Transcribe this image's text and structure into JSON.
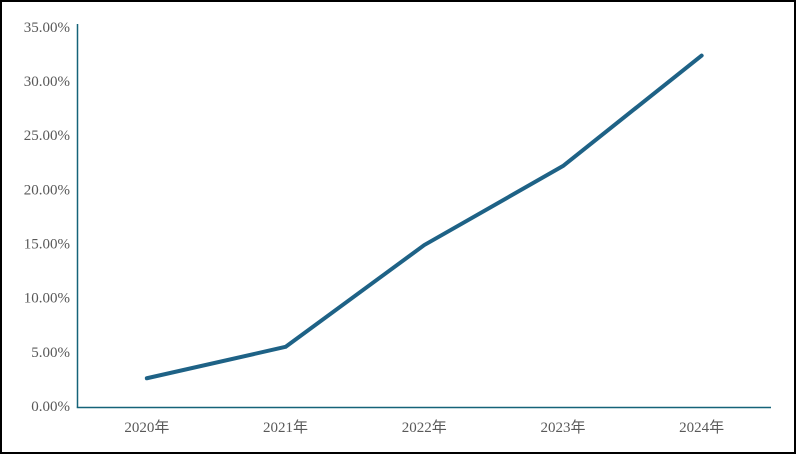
{
  "chart_data": {
    "type": "line",
    "categories": [
      "2020年",
      "2021年",
      "2022年",
      "2023年",
      "2024年"
    ],
    "values": [
      2.7,
      5.6,
      15.0,
      22.3,
      32.5
    ],
    "ytick_values": [
      0,
      5,
      10,
      15,
      20,
      25,
      30,
      35
    ],
    "ytick_labels": [
      "0.00%",
      "5.00%",
      "10.00%",
      "15.00%",
      "20.00%",
      "25.00%",
      "30.00%",
      "35.00%"
    ],
    "ylim": [
      0,
      35
    ],
    "grid": false,
    "legend": "none",
    "line_color": "#1E6286",
    "axis_color": "#156379",
    "label_color": "#595959",
    "frame_color": "#000000"
  }
}
